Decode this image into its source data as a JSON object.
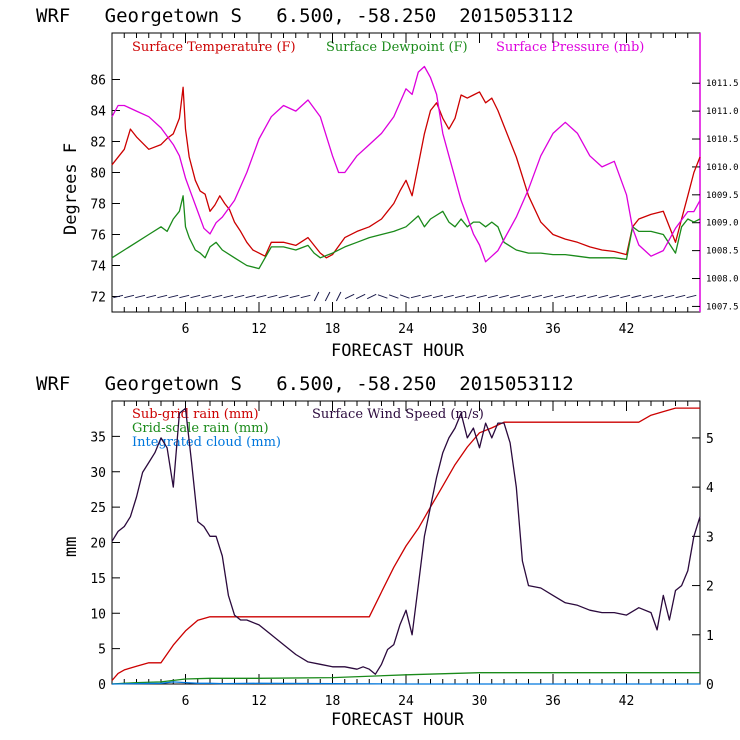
{
  "chart_data": [
    {
      "type": "line",
      "title": "WRF   Georgetown S   6.500, -58.250  2015053112",
      "xlabel": "FORECAST HOUR",
      "ylabel": "Degrees F",
      "xlim": [
        0,
        48
      ],
      "xticks": [
        6,
        12,
        18,
        24,
        30,
        36,
        42
      ],
      "ylim": [
        71,
        89
      ],
      "yticks": [
        72,
        74,
        76,
        78,
        80,
        82,
        84,
        86
      ],
      "y2lim": [
        1007.4,
        1012.4
      ],
      "y2ticks": [
        "1007.5",
        "1008.0",
        "1008.5",
        "1009.0",
        "1009.5",
        "1010.0",
        "1010.5",
        "1011.0",
        "1011.5"
      ],
      "legend_position": "top",
      "series": [
        {
          "name": "Surface Temperature (F)",
          "color": "#cc0000",
          "axis": "left",
          "x": [
            0,
            1,
            1.5,
            2,
            3,
            4,
            4.5,
            5,
            5.5,
            5.8,
            6,
            6.3,
            6.8,
            7.2,
            7.6,
            8,
            8.4,
            8.8,
            9.2,
            9.6,
            10,
            10.5,
            11,
            11.5,
            12,
            12.5,
            13,
            14,
            15,
            16,
            17,
            17.5,
            18,
            19,
            20,
            21,
            22,
            22.5,
            23,
            23.5,
            24,
            24.5,
            25,
            25.5,
            26,
            26.5,
            27,
            27.5,
            28,
            28.5,
            29,
            29.5,
            30,
            30.5,
            31,
            31.5,
            32,
            33,
            34,
            35,
            36,
            37,
            38,
            39,
            40,
            41,
            42,
            42.5,
            43,
            44,
            45,
            46,
            46.5,
            47,
            47.5,
            48
          ],
          "y": [
            80.5,
            81.5,
            82.8,
            82.3,
            81.5,
            81.8,
            82.2,
            82.5,
            83.5,
            85.5,
            82.8,
            81.0,
            79.5,
            78.8,
            78.6,
            77.5,
            77.9,
            78.5,
            78.0,
            77.6,
            76.8,
            76.2,
            75.5,
            75.0,
            74.8,
            74.6,
            75.5,
            75.5,
            75.3,
            75.8,
            74.8,
            74.5,
            74.7,
            75.8,
            76.2,
            76.5,
            77.0,
            77.5,
            78.0,
            78.8,
            79.5,
            78.5,
            80.5,
            82.5,
            84.0,
            84.5,
            83.5,
            82.8,
            83.5,
            85.0,
            84.8,
            85.0,
            85.2,
            84.5,
            84.8,
            84.0,
            83.0,
            81.0,
            78.5,
            76.8,
            76.0,
            75.7,
            75.5,
            75.2,
            75.0,
            74.9,
            74.7,
            76.5,
            77.0,
            77.3,
            77.5,
            75.5,
            77.0,
            78.5,
            80.0,
            81.0
          ]
        },
        {
          "name": "Surface Dewpoint (F)",
          "color": "#1a8a1a",
          "axis": "left",
          "x": [
            0,
            1,
            2,
            3,
            4,
            4.5,
            5,
            5.5,
            5.8,
            6,
            6.3,
            6.8,
            7.2,
            7.6,
            8,
            8.5,
            9,
            10,
            11,
            12,
            12.5,
            13,
            14,
            15,
            16,
            16.5,
            17,
            18,
            19,
            20,
            21,
            22,
            23,
            24,
            25,
            25.5,
            26,
            27,
            27.5,
            28,
            28.5,
            29,
            29.5,
            30,
            30.5,
            31,
            31.5,
            32,
            33,
            34,
            35,
            36,
            37,
            38,
            39,
            40,
            41,
            42,
            42.5,
            43,
            44,
            45,
            46,
            46.5,
            47,
            47.5,
            48
          ],
          "y": [
            74.5,
            75.0,
            75.5,
            76.0,
            76.5,
            76.2,
            77.0,
            77.5,
            78.5,
            76.5,
            75.8,
            75.0,
            74.8,
            74.5,
            75.2,
            75.5,
            75.0,
            74.5,
            74.0,
            73.8,
            74.5,
            75.2,
            75.2,
            75.0,
            75.3,
            74.8,
            74.5,
            74.8,
            75.2,
            75.5,
            75.8,
            76.0,
            76.2,
            76.5,
            77.2,
            76.5,
            77.0,
            77.5,
            76.8,
            76.5,
            77.0,
            76.5,
            76.8,
            76.8,
            76.5,
            76.8,
            76.5,
            75.5,
            75.0,
            74.8,
            74.8,
            74.7,
            74.7,
            74.6,
            74.5,
            74.5,
            74.5,
            74.4,
            76.5,
            76.2,
            76.2,
            76.0,
            74.8,
            76.5,
            77.0,
            76.8,
            77.0
          ]
        },
        {
          "name": "Surface Pressure (mb)",
          "color": "#dd00dd",
          "axis": "right",
          "x": [
            0,
            0.5,
            1,
            2,
            3,
            4,
            5,
            5.5,
            6,
            6.5,
            7,
            7.5,
            8,
            8.5,
            9,
            10,
            11,
            12,
            13,
            14,
            15,
            16,
            17,
            18,
            18.5,
            19,
            20,
            21,
            22,
            23,
            24,
            24.5,
            25,
            25.5,
            26,
            26.5,
            27,
            27.5,
            28,
            28.5,
            29,
            29.5,
            30,
            30.5,
            31,
            31.5,
            32,
            33,
            34,
            35,
            36,
            37,
            38,
            39,
            40,
            41,
            42,
            42.5,
            43,
            44,
            45,
            46,
            47,
            47.5,
            48
          ],
          "y": [
            1010.9,
            1011.1,
            1011.1,
            1011.0,
            1010.9,
            1010.7,
            1010.4,
            1010.2,
            1009.8,
            1009.5,
            1009.2,
            1008.9,
            1008.8,
            1009.0,
            1009.1,
            1009.4,
            1009.9,
            1010.5,
            1010.9,
            1011.1,
            1011.0,
            1011.2,
            1010.9,
            1010.2,
            1009.9,
            1009.9,
            1010.2,
            1010.4,
            1010.6,
            1010.9,
            1011.4,
            1011.3,
            1011.7,
            1011.8,
            1011.6,
            1011.3,
            1010.6,
            1010.2,
            1009.8,
            1009.4,
            1009.1,
            1008.8,
            1008.6,
            1008.3,
            1008.4,
            1008.5,
            1008.7,
            1009.1,
            1009.6,
            1010.2,
            1010.6,
            1010.8,
            1010.6,
            1010.2,
            1010.0,
            1010.1,
            1009.5,
            1008.9,
            1008.6,
            1008.4,
            1008.5,
            1008.9,
            1009.2,
            1009.2,
            1009.4
          ]
        }
      ],
      "annotations": "wind barbs along y = 72"
    },
    {
      "type": "line",
      "title": "WRF   Georgetown S   6.500, -58.250  2015053112",
      "xlabel": "FORECAST HOUR",
      "ylabel": "mm",
      "xlim": [
        0,
        48
      ],
      "xticks": [
        6,
        12,
        18,
        24,
        30,
        36,
        42
      ],
      "ylim": [
        0,
        40
      ],
      "yticks": [
        0,
        5,
        10,
        15,
        20,
        25,
        30,
        35
      ],
      "y2lim": [
        0,
        5.75
      ],
      "y2ticks": [
        0,
        1,
        2,
        3,
        4,
        5
      ],
      "legend_position": "top-left",
      "series": [
        {
          "name": "Sub-grid rain (mm)",
          "color": "#cc0000",
          "axis": "left",
          "x": [
            0,
            0.5,
            1,
            2,
            3,
            4,
            5,
            6,
            7,
            8,
            9,
            10,
            12,
            14,
            16,
            18,
            20,
            21,
            22,
            23,
            24,
            25,
            26,
            27,
            28,
            29,
            30,
            31,
            32,
            33,
            36,
            40,
            43,
            44,
            45,
            46,
            48
          ],
          "y": [
            0.5,
            1.5,
            2.0,
            2.5,
            3.0,
            3.0,
            5.5,
            7.5,
            9.0,
            9.5,
            9.5,
            9.5,
            9.5,
            9.5,
            9.5,
            9.5,
            9.5,
            9.5,
            13.0,
            16.5,
            19.5,
            22.0,
            25.0,
            28.0,
            31.0,
            33.5,
            35.5,
            36.2,
            37.0,
            37.0,
            37.0,
            37.0,
            37.0,
            38.0,
            38.5,
            39.0,
            39.0
          ]
        },
        {
          "name": "Grid-scale rain (mm)",
          "color": "#1a8a1a",
          "axis": "left",
          "x": [
            0,
            2,
            4,
            6,
            8,
            12,
            18,
            24,
            30,
            36,
            42,
            48
          ],
          "y": [
            0,
            0.2,
            0.3,
            0.7,
            0.8,
            0.8,
            0.9,
            1.3,
            1.6,
            1.6,
            1.6,
            1.6
          ]
        },
        {
          "name": "Integrated cloud (mm)",
          "color": "#0077dd",
          "axis": "left",
          "x": [
            0,
            4,
            5,
            6,
            7,
            8,
            9,
            12,
            24,
            48
          ],
          "y": [
            0,
            0.1,
            0.3,
            0.2,
            0.1,
            0.1,
            0.05,
            0.1,
            0,
            0
          ]
        },
        {
          "name": "Surface Wind Speed (m/s)",
          "color": "#2b0a3d",
          "axis": "right",
          "x": [
            0,
            0.5,
            1,
            1.5,
            2,
            2.5,
            3,
            3.5,
            4,
            4.5,
            5,
            5.5,
            6,
            6.5,
            7,
            7.5,
            8,
            8.5,
            9,
            9.5,
            10,
            10.5,
            11,
            12,
            13,
            14,
            15,
            16,
            17,
            18,
            19,
            20,
            20.5,
            21,
            21.5,
            22,
            22.5,
            23,
            23.5,
            24,
            24.5,
            25,
            25.5,
            26,
            26.5,
            27,
            27.5,
            28,
            28.5,
            29,
            29.5,
            30,
            30.5,
            31,
            31.5,
            32,
            32.5,
            33,
            33.5,
            34,
            35,
            36,
            37,
            38,
            39,
            40,
            41,
            42,
            43,
            44,
            44.5,
            45,
            45.5,
            46,
            46.5,
            47,
            47.5,
            48
          ],
          "y": [
            2.9,
            3.1,
            3.2,
            3.4,
            3.8,
            4.3,
            4.5,
            4.7,
            5.0,
            4.8,
            4.0,
            5.5,
            5.6,
            4.5,
            3.3,
            3.2,
            3.0,
            3.0,
            2.6,
            1.8,
            1.4,
            1.3,
            1.3,
            1.2,
            1.0,
            0.8,
            0.6,
            0.45,
            0.4,
            0.35,
            0.35,
            0.3,
            0.35,
            0.3,
            0.2,
            0.4,
            0.7,
            0.8,
            1.2,
            1.5,
            1.0,
            2.0,
            3.0,
            3.6,
            4.2,
            4.7,
            5.0,
            5.2,
            5.5,
            5.0,
            5.2,
            4.8,
            5.3,
            5.0,
            5.3,
            5.3,
            4.9,
            4.0,
            2.5,
            2.0,
            1.95,
            1.8,
            1.65,
            1.6,
            1.5,
            1.45,
            1.45,
            1.4,
            1.55,
            1.45,
            1.1,
            1.8,
            1.3,
            1.9,
            2.0,
            2.3,
            3.0,
            3.4
          ]
        }
      ]
    }
  ]
}
